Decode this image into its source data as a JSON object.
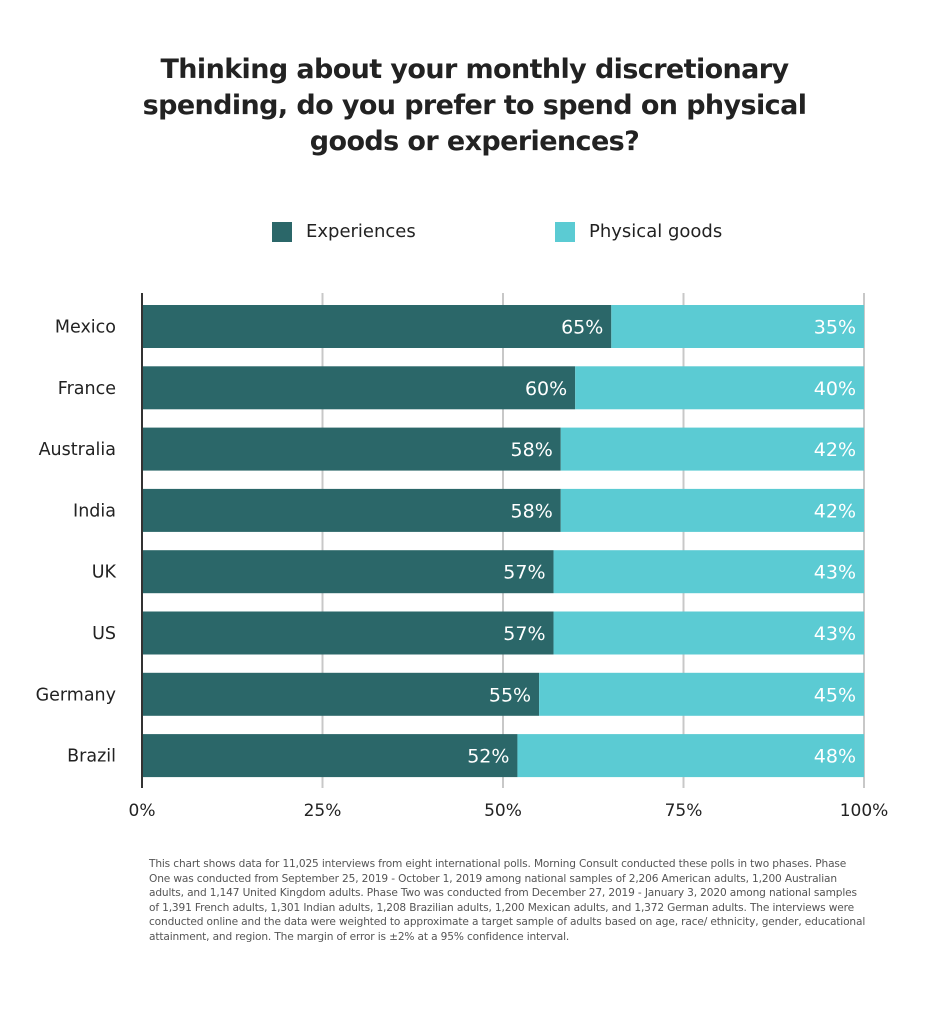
{
  "chart_data": {
    "type": "bar",
    "orientation": "horizontal",
    "stacked": true,
    "title": "Thinking about your monthly discretionary spending, do you prefer to spend on physical goods or experiences?",
    "title_lines": [
      "Thinking about your monthly discretionary",
      "spending, do you prefer to spend on physical",
      "goods or experiences?"
    ],
    "categories": [
      "Mexico",
      "France",
      "Australia",
      "India",
      "UK",
      "US",
      "Germany",
      "Brazil"
    ],
    "series": [
      {
        "name": "Experiences",
        "color": "#2b6769",
        "values": [
          65,
          60,
          58,
          58,
          57,
          57,
          55,
          52
        ]
      },
      {
        "name": "Physical goods",
        "color": "#5bcbd3",
        "values": [
          35,
          40,
          42,
          42,
          43,
          43,
          45,
          48
        ]
      }
    ],
    "xlim": [
      0,
      100
    ],
    "xticks": [
      0,
      25,
      50,
      75,
      100
    ],
    "xtick_labels": [
      "0%",
      "25%",
      "50%",
      "75%",
      "100%"
    ],
    "xlabel": "",
    "ylabel": "",
    "value_suffix": "%",
    "grid": true,
    "legend_position": "top-center",
    "gridline_color": "#c8c8c8",
    "axis_color": "#333333"
  },
  "legend": {
    "items": [
      {
        "label": "Experiences",
        "color": "#2b6769"
      },
      {
        "label": "Physical goods",
        "color": "#5bcbd3"
      }
    ]
  },
  "footnote": "This chart shows data for 11,025 interviews from eight international polls.  Morning Consult conducted these polls in two phases. Phase One was conducted from September 25, 2019 - October 1, 2019 among national samples of 2,206 American adults, 1,200 Australian adults, and 1,147 United Kingdom adults.  Phase Two was conducted from December 27, 2019 - January 3, 2020 among national samples of 1,391 French adults, 1,301 Indian adults, 1,208 Brazilian adults, 1,200 Mexican adults, and 1,372 German adults. The interviews were conducted online and the data were weighted to approximate a target sample of adults based on age, race/ ethnicity, gender, educational attainment, and region.  The margin of error is ±2% at a 95% confidence interval."
}
